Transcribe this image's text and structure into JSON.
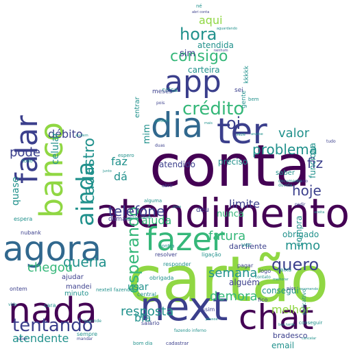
{
  "image": {
    "type": "word-cloud",
    "shape": "thumbs-up"
  },
  "palette": {
    "dark_purple": "#440154",
    "indigo": "#3b3f8c",
    "blue": "#31688e",
    "teal": "#21918c",
    "green": "#35b779",
    "lime": "#90d743",
    "yellow": "#fde725"
  },
  "words": [
    {
      "text": "cartão",
      "weight": 100,
      "color": "lime"
    },
    {
      "text": "conta",
      "weight": 92,
      "color": "dark_purple"
    },
    {
      "text": "atendimento",
      "weight": 86,
      "color": "dark_purple"
    },
    {
      "text": "next",
      "weight": 74,
      "color": "indigo"
    },
    {
      "text": "nada",
      "weight": 62,
      "color": "dark_purple"
    },
    {
      "text": "agora",
      "weight": 62,
      "color": "blue"
    },
    {
      "text": "chat",
      "weight": 60,
      "color": "dark_purple"
    },
    {
      "text": "app",
      "weight": 58,
      "color": "indigo"
    },
    {
      "text": "banco",
      "weight": 58,
      "color": "lime"
    },
    {
      "text": "falar",
      "weight": 55,
      "color": "indigo"
    },
    {
      "text": "dia",
      "weight": 55,
      "color": "blue"
    },
    {
      "text": "ter",
      "weight": 52,
      "color": "indigo"
    },
    {
      "text": "ainda",
      "weight": 48,
      "color": "teal"
    },
    {
      "text": "fazer",
      "weight": 45,
      "color": "green"
    },
    {
      "text": "tentando",
      "weight": 38,
      "color": "indigo"
    },
    {
      "text": "crédito",
      "weight": 34,
      "color": "green"
    },
    {
      "text": "esperando",
      "weight": 32,
      "color": "green"
    },
    {
      "text": "cadastro",
      "weight": 30,
      "color": "teal"
    },
    {
      "text": "hora",
      "weight": 30,
      "color": "teal"
    },
    {
      "text": "problema",
      "weight": 28,
      "color": "teal"
    },
    {
      "text": "quero",
      "weight": 26,
      "color": "indigo"
    },
    {
      "text": "consigo",
      "weight": 26,
      "color": "green"
    },
    {
      "text": "queria",
      "weight": 24,
      "color": "teal"
    },
    {
      "text": "demora",
      "weight": 24,
      "color": "green"
    },
    {
      "text": "telefone",
      "weight": 24,
      "color": "indigo"
    },
    {
      "text": "resposta",
      "weight": 24,
      "color": "teal"
    },
    {
      "text": "oi",
      "weight": 26,
      "color": "indigo"
    },
    {
      "text": "débito",
      "weight": 20,
      "color": "indigo"
    },
    {
      "text": "pode",
      "weight": 20,
      "color": "indigo"
    },
    {
      "text": "celular",
      "weight": 20,
      "color": "teal"
    },
    {
      "text": "chegou",
      "weight": 20,
      "color": "green"
    },
    {
      "text": "atendente",
      "weight": 20,
      "color": "teal"
    },
    {
      "text": "fatura",
      "weight": 20,
      "color": "green"
    },
    {
      "text": "valor",
      "weight": 20,
      "color": "teal"
    },
    {
      "text": "fiz",
      "weight": 20,
      "color": "indigo"
    },
    {
      "text": "hoje",
      "weight": 20,
      "color": "indigo"
    },
    {
      "text": "mimo",
      "weight": 20,
      "color": "teal"
    },
    {
      "text": "semana",
      "weight": 20,
      "color": "teal"
    },
    {
      "text": "limite",
      "weight": 18,
      "color": "indigo"
    },
    {
      "text": "aqui",
      "weight": 20,
      "color": "lime"
    },
    {
      "text": "ajuda",
      "weight": 18,
      "color": "green"
    },
    {
      "text": "faz",
      "weight": 18,
      "color": "teal"
    },
    {
      "text": "dá",
      "weight": 16,
      "color": "teal"
    },
    {
      "text": "bia",
      "weight": 18,
      "color": "teal"
    },
    {
      "text": "melhor",
      "weight": 16,
      "color": "lime"
    },
    {
      "text": "quase",
      "weight": 14,
      "color": "teal"
    },
    {
      "text": "atendida",
      "weight": 12,
      "color": "teal"
    },
    {
      "text": "sim",
      "weight": 13,
      "color": "indigo"
    },
    {
      "text": "carteira",
      "weight": 12,
      "color": "teal"
    },
    {
      "text": "obrigado",
      "weight": 12,
      "color": "teal"
    },
    {
      "text": "atendido",
      "weight": 12,
      "color": "indigo"
    },
    {
      "text": "preciso",
      "weight": 12,
      "color": "teal"
    },
    {
      "text": "nunca",
      "weight": 13,
      "color": "green"
    },
    {
      "text": "mim",
      "weight": 13,
      "color": "teal"
    },
    {
      "text": "usar",
      "weight": 14,
      "color": "teal"
    },
    {
      "text": "alguém",
      "weight": 12,
      "color": "indigo"
    },
    {
      "text": "consegui",
      "weight": 12,
      "color": "teal"
    },
    {
      "text": "bradesco",
      "weight": 11,
      "color": "indigo"
    },
    {
      "text": "email",
      "weight": 12,
      "color": "teal"
    },
    {
      "text": "funciona",
      "weight": 12,
      "color": "teal"
    },
    {
      "text": "compra",
      "weight": 12,
      "color": "teal"
    },
    {
      "text": "darcliente",
      "weight": 11,
      "color": "indigo"
    },
    {
      "text": "ajudar",
      "weight": 10,
      "color": "indigo"
    },
    {
      "text": "minuto",
      "weight": 10,
      "color": "teal"
    },
    {
      "text": "mandei",
      "weight": 10,
      "color": "indigo"
    },
    {
      "text": "entrar",
      "weight": 10,
      "color": "teal"
    },
    {
      "text": "deu",
      "weight": 10,
      "color": "indigo"
    },
    {
      "text": "coisa",
      "weight": 9,
      "color": "teal"
    },
    {
      "text": "demais",
      "weight": 9,
      "color": "indigo"
    },
    {
      "text": "saber",
      "weight": 10,
      "color": "teal"
    },
    {
      "text": "gente",
      "weight": 9,
      "color": "teal"
    },
    {
      "text": "kkkkk",
      "weight": 9,
      "color": "teal"
    },
    {
      "text": "meses",
      "weight": 9,
      "color": "indigo"
    },
    {
      "text": "ver",
      "weight": 9,
      "color": "teal"
    },
    {
      "text": "sei",
      "weight": 9,
      "color": "indigo"
    },
    {
      "text": "pagar",
      "weight": 8,
      "color": "indigo"
    },
    {
      "text": "logo",
      "weight": 8,
      "color": "indigo"
    },
    {
      "text": "responder",
      "weight": 8,
      "color": "teal"
    },
    {
      "text": "obrigada",
      "weight": 8,
      "color": "teal"
    },
    {
      "text": "aplicativo",
      "weight": 8,
      "color": "teal"
    },
    {
      "text": "resolver",
      "weight": 8,
      "color": "indigo"
    },
    {
      "text": "nubank",
      "weight": 8,
      "color": "indigo"
    },
    {
      "text": "espera",
      "weight": 8,
      "color": "teal"
    },
    {
      "text": "cara",
      "weight": 8,
      "color": "teal"
    },
    {
      "text": "sempre",
      "weight": 8,
      "color": "teal"
    },
    {
      "text": "ontem",
      "weight": 8,
      "color": "indigo"
    },
    {
      "text": "ligação",
      "weight": 8,
      "color": "teal"
    },
    {
      "text": "nextell fazendo",
      "weight": 7,
      "color": "teal"
    },
    {
      "text": "salário",
      "weight": 8,
      "color": "indigo"
    },
    {
      "text": "bom dia",
      "weight": 7,
      "color": "teal"
    },
    {
      "text": "cadastrar",
      "weight": 7,
      "color": "indigo"
    },
    {
      "text": "central",
      "weight": 8,
      "color": "teal"
    },
    {
      "text": "fico",
      "weight": 8,
      "color": "indigo"
    },
    {
      "text": "caixa",
      "weight": 8,
      "color": "teal"
    },
    {
      "text": "assim",
      "weight": 8,
      "color": "indigo"
    },
    {
      "text": "contra",
      "weight": 7,
      "color": "teal"
    },
    {
      "text": "pior",
      "weight": 7,
      "color": "indigo"
    },
    {
      "text": "contato",
      "weight": 6,
      "color": "teal"
    },
    {
      "text": "conseguir",
      "weight": 7,
      "color": "teal"
    },
    {
      "text": "espero",
      "weight": 7,
      "color": "teal"
    },
    {
      "text": "abrir",
      "weight": 7,
      "color": "indigo"
    },
    {
      "text": "alguma",
      "weight": 7,
      "color": "teal"
    },
    {
      "text": "todo",
      "weight": 7,
      "color": "teal"
    },
    {
      "text": "bem",
      "weight": 7,
      "color": "teal"
    },
    {
      "text": "tudo",
      "weight": 6,
      "color": "indigo"
    },
    {
      "text": "podem",
      "weight": 6,
      "color": "teal"
    },
    {
      "text": "mano",
      "weight": 6,
      "color": "indigo"
    },
    {
      "text": "pedir",
      "weight": 6,
      "color": "indigo"
    },
    {
      "text": "né",
      "weight": 7,
      "color": "teal"
    },
    {
      "text": "pois",
      "weight": 6,
      "color": "indigo"
    },
    {
      "text": "veze",
      "weight": 6,
      "color": "teal"
    },
    {
      "text": "duas",
      "weight": 6,
      "color": "indigo"
    },
    {
      "text": "dúvida",
      "weight": 6,
      "color": "teal"
    },
    {
      "text": "documento",
      "weight": 6,
      "color": "teal"
    },
    {
      "text": "fazendo inferno",
      "weight": 6,
      "color": "teal"
    },
    {
      "text": "mandar",
      "weight": 6,
      "color": "indigo"
    },
    {
      "text": "uber",
      "weight": 6,
      "color": "indigo"
    },
    {
      "text": "vida",
      "weight": 6,
      "color": "teal"
    },
    {
      "text": "responde",
      "weight": 6,
      "color": "teal"
    },
    {
      "text": "aguardando",
      "weight": 5,
      "color": "teal"
    },
    {
      "text": "abri conta",
      "weight": 5,
      "color": "indigo"
    },
    {
      "text": "nenhum",
      "weight": 5,
      "color": "indigo"
    },
    {
      "text": "junto",
      "weight": 5,
      "color": "teal"
    },
    {
      "text": "pessoa",
      "weight": 5,
      "color": "teal"
    },
    {
      "text": "aceita",
      "weight": 5,
      "color": "teal"
    },
    {
      "text": "recomendo",
      "weight": 5,
      "color": "teal"
    },
    {
      "text": "analise",
      "weight": 5,
      "color": "teal"
    },
    {
      "text": "melhorar",
      "weight": 5,
      "color": "teal"
    },
    {
      "text": "cancelar",
      "weight": 5,
      "color": "teal"
    },
    {
      "text": "ajudem",
      "weight": 5,
      "color": "teal"
    },
    {
      "text": "boa tarde",
      "weight": 5,
      "color": "teal"
    },
    {
      "text": "poxa",
      "weight": 5,
      "color": "teal"
    },
    {
      "text": "cartão crédito",
      "weight": 5,
      "color": "teal"
    },
    {
      "text": "mais",
      "weight": 5,
      "color": "teal"
    }
  ]
}
